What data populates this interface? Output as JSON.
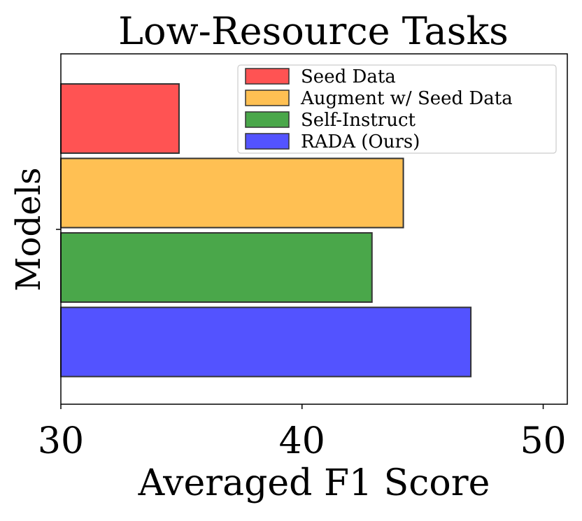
{
  "chart_data": {
    "type": "bar",
    "orientation": "horizontal",
    "title": "Low-Resource Tasks",
    "xlabel": "Averaged F1 Score",
    "ylabel": "Models",
    "xlim": [
      30,
      51
    ],
    "xticks": [
      "30",
      "40",
      "50"
    ],
    "grid": false,
    "legend_position": "top-right",
    "series": [
      {
        "name": "Seed Data",
        "value": 34.9,
        "color": "#ff1a1a"
      },
      {
        "name": "Augment w/ Seed Data",
        "value": 44.2,
        "color": "#ffab19"
      },
      {
        "name": "Self-Instruct",
        "value": 42.9,
        "color": "#0e8a0e"
      },
      {
        "name": "RADA (Ours)",
        "value": 47.0,
        "color": "#1a1aff"
      }
    ]
  }
}
